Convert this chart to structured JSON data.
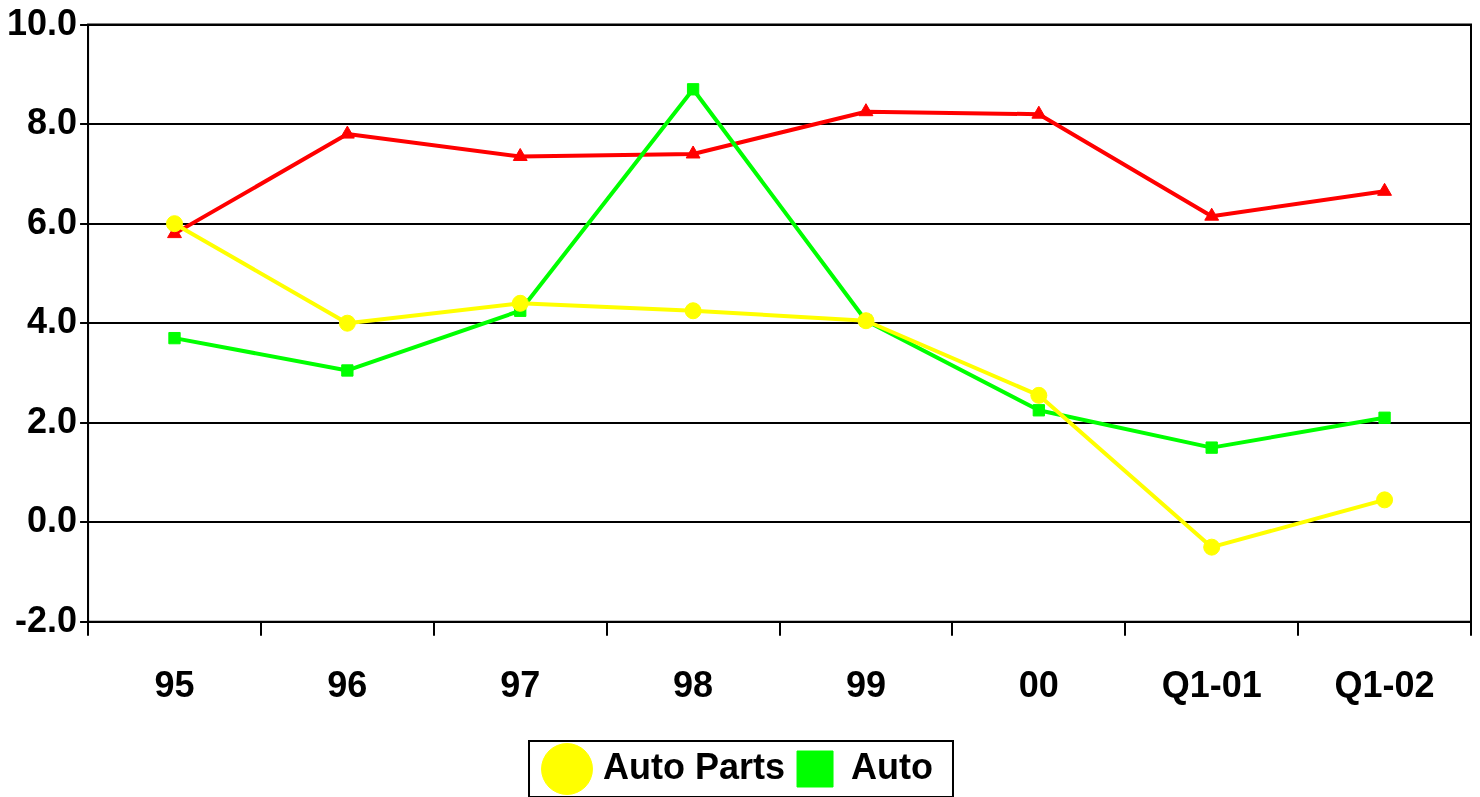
{
  "chart_data": {
    "type": "line",
    "categories": [
      "95",
      "96",
      "97",
      "98",
      "99",
      "00",
      "Q1-01",
      "Q1-02"
    ],
    "series": [
      {
        "color": "#ff0000",
        "marker": "triangle",
        "values": [
          5.8,
          7.8,
          7.35,
          7.4,
          8.25,
          8.2,
          6.15,
          6.65
        ]
      },
      {
        "name": "Auto",
        "color": "#00ff00",
        "marker": "square",
        "values": [
          3.7,
          3.05,
          4.25,
          8.7,
          4.05,
          2.25,
          1.5,
          2.1
        ]
      },
      {
        "name": "Auto Parts",
        "color": "#ffff00",
        "marker": "circle",
        "values": [
          6.0,
          4.0,
          4.4,
          4.25,
          4.05,
          2.55,
          -0.5,
          0.45
        ]
      }
    ],
    "ylim": [
      -2,
      10
    ],
    "yticks": [
      {
        "value": -2,
        "label": "-2.0"
      },
      {
        "value": 0,
        "label": "0.0"
      },
      {
        "value": 2,
        "label": "2.0"
      },
      {
        "value": 4,
        "label": "4.0"
      },
      {
        "value": 6,
        "label": "6.0"
      },
      {
        "value": 8,
        "label": "8.0"
      },
      {
        "value": 10,
        "label": "10.0"
      }
    ],
    "grid": "y",
    "legend": "bottom",
    "line_style": "solid"
  }
}
